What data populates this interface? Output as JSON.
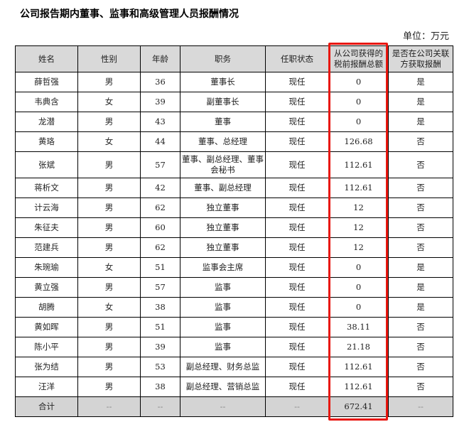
{
  "title": "公司报告期内董事、监事和高级管理人员报酬情况",
  "unit": "单位：万元",
  "highlight_color": "#e8170f",
  "columns": [
    "姓名",
    "性别",
    "年龄",
    "职务",
    "任职状态",
    "从公司获得的税前报酬总额",
    "是否在公司关联方获取报酬"
  ],
  "rows": [
    [
      "薛哲强",
      "男",
      "36",
      "董事长",
      "现任",
      "0",
      "是"
    ],
    [
      "韦典含",
      "女",
      "39",
      "副董事长",
      "现任",
      "0",
      "是"
    ],
    [
      "龙潜",
      "男",
      "43",
      "董事",
      "现任",
      "0",
      "是"
    ],
    [
      "黄珞",
      "女",
      "44",
      "董事、总经理",
      "现任",
      "126.68",
      "否"
    ],
    [
      "张斌",
      "男",
      "57",
      "董事、副总经理、董事会秘书",
      "现任",
      "112.61",
      "否"
    ],
    [
      "蒋析文",
      "男",
      "42",
      "董事、副总经理",
      "现任",
      "112.61",
      "否"
    ],
    [
      "计云海",
      "男",
      "62",
      "独立董事",
      "现任",
      "12",
      "否"
    ],
    [
      "朱征夫",
      "男",
      "60",
      "独立董事",
      "现任",
      "12",
      "否"
    ],
    [
      "范建兵",
      "男",
      "62",
      "独立董事",
      "现任",
      "12",
      "否"
    ],
    [
      "朱琬瑜",
      "女",
      "51",
      "监事会主席",
      "现任",
      "0",
      "是"
    ],
    [
      "黄立强",
      "男",
      "57",
      "监事",
      "现任",
      "0",
      "是"
    ],
    [
      "胡腾",
      "女",
      "38",
      "监事",
      "现任",
      "0",
      "是"
    ],
    [
      "黄如晖",
      "男",
      "51",
      "监事",
      "现任",
      "38.11",
      "否"
    ],
    [
      "陈小平",
      "男",
      "39",
      "监事",
      "现任",
      "21.18",
      "否"
    ],
    [
      "张为结",
      "男",
      "53",
      "副总经理、财务总监",
      "现任",
      "112.61",
      "否"
    ],
    [
      "汪洋",
      "男",
      "38",
      "副总经理、营销总监",
      "现任",
      "112.61",
      "否"
    ]
  ],
  "total": [
    "合计",
    "--",
    "--",
    "--",
    "--",
    "672.41",
    "--"
  ]
}
